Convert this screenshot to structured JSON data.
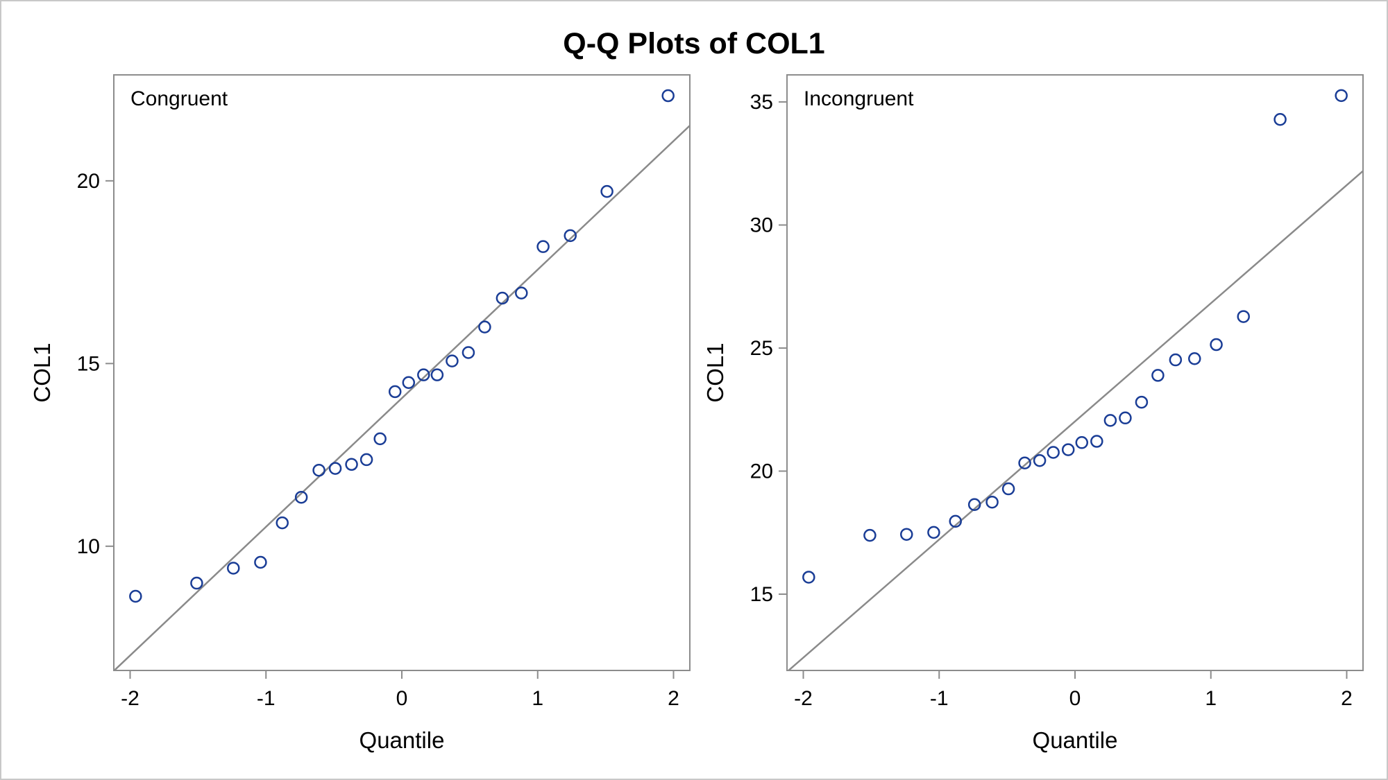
{
  "title": "Q-Q Plots of COL1",
  "chart_data": [
    {
      "type": "scatter",
      "panel_label": "Congruent",
      "xlabel": "Quantile",
      "ylabel": "COL1",
      "xlim": [
        -2.12,
        2.12
      ],
      "ylim": [
        6.6,
        22.9
      ],
      "xticks": [
        -2,
        -1,
        0,
        1,
        2
      ],
      "xtick_labels": [
        "-2",
        "-1",
        "0",
        "1",
        "2"
      ],
      "yticks": [
        10,
        15,
        20
      ],
      "ytick_labels": [
        "10",
        "15",
        "20"
      ],
      "reference_line": {
        "intercept": 14.05,
        "slope": 3.52
      },
      "point_color": "#1a3d96",
      "line_color": "#8a8a8a",
      "x": [
        -1.96,
        -1.51,
        -1.24,
        -1.04,
        -0.88,
        -0.74,
        -0.61,
        -0.49,
        -0.37,
        -0.26,
        -0.16,
        -0.05,
        0.05,
        0.16,
        0.26,
        0.37,
        0.49,
        0.61,
        0.74,
        0.88,
        1.04,
        1.24,
        1.51,
        1.96
      ],
      "y": [
        8.63,
        8.99,
        9.4,
        9.56,
        10.64,
        11.34,
        12.08,
        12.13,
        12.24,
        12.37,
        12.94,
        14.23,
        14.48,
        14.69,
        14.69,
        15.07,
        15.3,
        16.0,
        16.79,
        16.93,
        18.2,
        18.5,
        19.71,
        22.33
      ]
    },
    {
      "type": "scatter",
      "panel_label": "Incongruent",
      "xlabel": "Quantile",
      "ylabel": "COL1",
      "xlim": [
        -2.12,
        2.12
      ],
      "ylim": [
        11.9,
        36.1
      ],
      "xticks": [
        -2,
        -1,
        0,
        1,
        2
      ],
      "xtick_labels": [
        "-2",
        "-1",
        "0",
        "1",
        "2"
      ],
      "yticks": [
        15,
        20,
        25,
        30,
        35
      ],
      "ytick_labels": [
        "15",
        "20",
        "25",
        "30",
        "35"
      ],
      "reference_line": {
        "intercept": 22.02,
        "slope": 4.8
      },
      "point_color": "#1a3d96",
      "line_color": "#8a8a8a",
      "x": [
        -1.96,
        -1.51,
        -1.24,
        -1.04,
        -0.88,
        -0.74,
        -0.61,
        -0.49,
        -0.37,
        -0.26,
        -0.16,
        -0.05,
        0.05,
        0.16,
        0.26,
        0.37,
        0.49,
        0.61,
        0.74,
        0.88,
        1.04,
        1.24,
        1.51,
        1.96
      ],
      "y": [
        15.69,
        17.39,
        17.43,
        17.51,
        17.96,
        18.64,
        18.74,
        19.28,
        20.33,
        20.43,
        20.76,
        20.87,
        21.16,
        21.21,
        22.06,
        22.16,
        22.8,
        23.89,
        24.52,
        24.57,
        25.14,
        26.28,
        34.29,
        35.26
      ]
    }
  ]
}
